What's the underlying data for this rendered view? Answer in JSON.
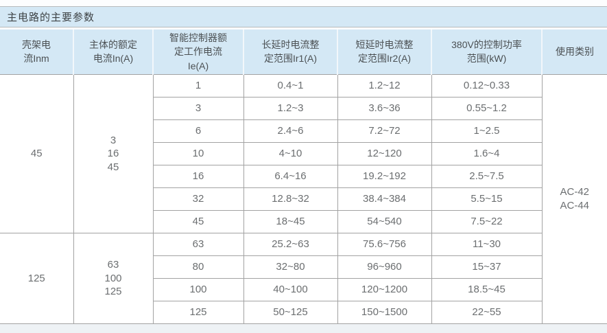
{
  "title": "主电路的主要参数",
  "table": {
    "headers": [
      "壳架电\n流Inm",
      "主体的额定\n电流In(A)",
      "智能控制器额\n定工作电流\nIe(A)",
      "长延时电流整\n定范围Ir1(A)",
      "短延时电流整\n定范围Ir2(A)",
      "380V的控制功率\n范围(kW)",
      "使用类别"
    ],
    "usage_category": "AC-42\nAC-44",
    "groups": [
      {
        "frame_current_Inm": "45",
        "rated_current_In": "3\n16\n45",
        "rows": [
          [
            "1",
            "0.4~1",
            "1.2~12",
            "0.12~0.33"
          ],
          [
            "3",
            "1.2~3",
            "3.6~36",
            "0.55~1.2"
          ],
          [
            "6",
            "2.4~6",
            "7.2~72",
            "1~2.5"
          ],
          [
            "10",
            "4~10",
            "12~120",
            "1.6~4"
          ],
          [
            "16",
            "6.4~16",
            "19.2~192",
            "2.5~7.5"
          ],
          [
            "32",
            "12.8~32",
            "38.4~384",
            "5.5~15"
          ],
          [
            "45",
            "18~45",
            "54~540",
            "7.5~22"
          ]
        ]
      },
      {
        "frame_current_Inm": "125",
        "rated_current_In": "63\n100\n125",
        "rows": [
          [
            "63",
            "25.2~63",
            "75.6~756",
            "11~30"
          ],
          [
            "80",
            "32~80",
            "96~960",
            "15~37"
          ],
          [
            "100",
            "40~100",
            "120~1200",
            "18.5~45"
          ],
          [
            "125",
            "50~125",
            "150~1500",
            "22~55"
          ]
        ]
      }
    ]
  },
  "colors": {
    "header_bg": "#d4e8f5",
    "border_gray": "#a2a2a2",
    "header_text": "#4b5053",
    "body_text": "#6b6e70"
  }
}
